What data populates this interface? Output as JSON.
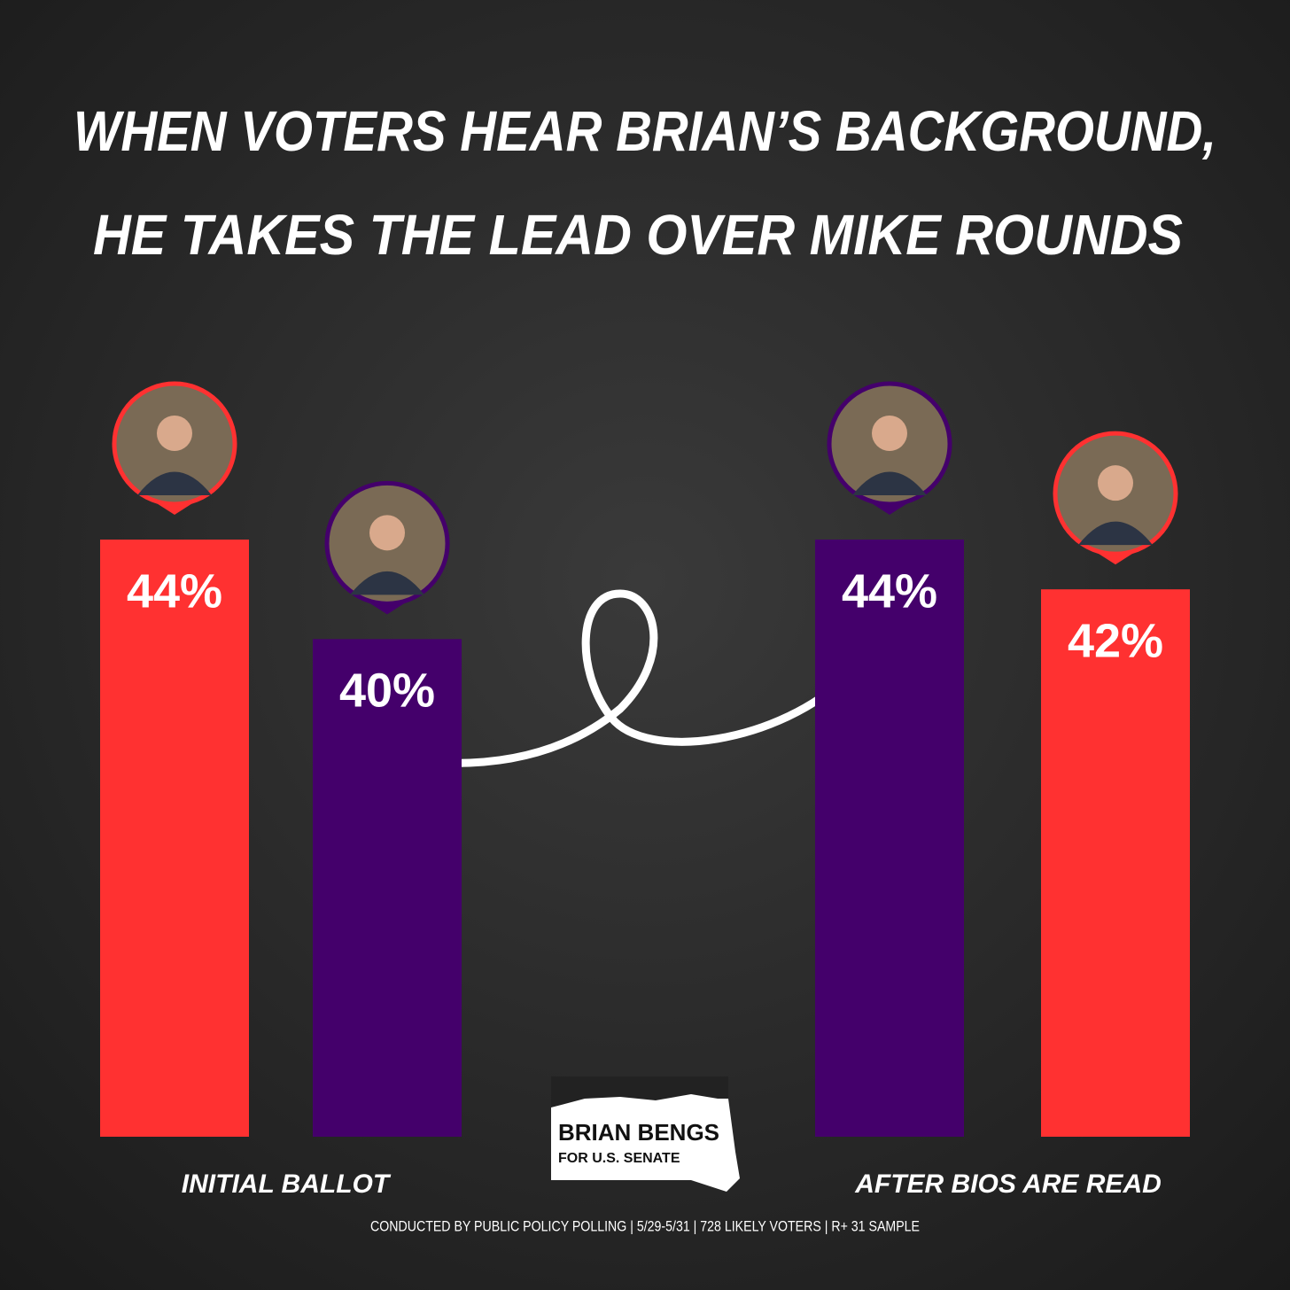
{
  "chart_data": {
    "type": "bar",
    "title": [
      "WHEN VOTERS HEAR BRIAN’S BACKGROUND,",
      "HE TAKES THE LEAD OVER MIKE ROUNDS"
    ],
    "groups": [
      {
        "label": "INITIAL BALLOT",
        "bars": [
          {
            "color": "#ff3131",
            "value": 44,
            "value_label": "44%"
          },
          {
            "color": "#44006b",
            "value": 40,
            "value_label": "40%"
          }
        ]
      },
      {
        "label": "AFTER BIOS ARE READ",
        "bars": [
          {
            "color": "#44006b",
            "value": 44,
            "value_label": "44%"
          },
          {
            "color": "#ff3131",
            "value": 42,
            "value_label": "42%"
          }
        ]
      }
    ],
    "ylim": [
      20,
      44
    ],
    "logo": [
      "BRIAN BENGS",
      "FOR U.S. SENATE"
    ],
    "footnote": "CONDUCTED BY PUBLIC POLICY POLLING | 5/29-5/31 | 728 LIKELY VOTERS | R+ 31 SAMPLE"
  }
}
